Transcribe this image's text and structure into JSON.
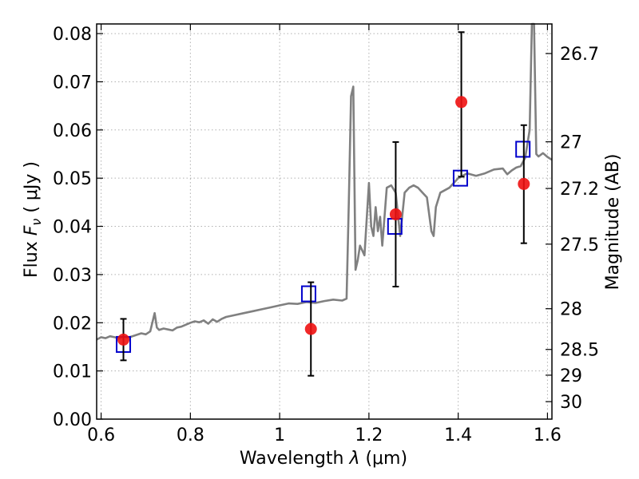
{
  "chart_data": {
    "type": "scatter",
    "xlabel": "Wavelength",
    "xlabel_symbol": "λ",
    "xlabel_unit": "μm",
    "ylabel": "Flux",
    "ylabel_symbol": "F",
    "ylabel_subscript": "ν",
    "ylabel_unit": "μJy",
    "y2label": "Magnitude (AB)",
    "xlim": [
      0.59,
      1.61
    ],
    "ylim": [
      0.0,
      0.082
    ],
    "grid": true,
    "x_ticks": [
      0.6,
      0.8,
      1.0,
      1.2,
      1.4,
      1.6
    ],
    "x_tick_labels": [
      "0.6",
      "0.8",
      "1",
      "1.2",
      "1.4",
      "1.6"
    ],
    "y_ticks": [
      0.0,
      0.01,
      0.02,
      0.03,
      0.04,
      0.05,
      0.06,
      0.07,
      0.08
    ],
    "y_tick_labels": [
      "0.00",
      "0.01",
      "0.02",
      "0.03",
      "0.04",
      "0.05",
      "0.06",
      "0.07",
      "0.08"
    ],
    "y2_tick_labels": [
      "26.7",
      "27",
      "27.2",
      "27.5",
      "28",
      "28.5",
      "29",
      "30"
    ],
    "series": [
      {
        "kind": "line",
        "color": "#808080",
        "x": [
          0.59,
          0.6,
          0.61,
          0.62,
          0.63,
          0.64,
          0.65,
          0.66,
          0.67,
          0.68,
          0.69,
          0.7,
          0.71,
          0.72,
          0.725,
          0.73,
          0.74,
          0.75,
          0.76,
          0.77,
          0.78,
          0.79,
          0.8,
          0.81,
          0.82,
          0.83,
          0.84,
          0.85,
          0.86,
          0.87,
          0.88,
          0.9,
          0.92,
          0.94,
          0.96,
          0.98,
          1.0,
          1.02,
          1.04,
          1.06,
          1.08,
          1.1,
          1.12,
          1.14,
          1.15,
          1.155,
          1.16,
          1.165,
          1.17,
          1.175,
          1.18,
          1.19,
          1.2,
          1.205,
          1.21,
          1.215,
          1.22,
          1.225,
          1.23,
          1.24,
          1.25,
          1.26,
          1.27,
          1.28,
          1.29,
          1.3,
          1.31,
          1.32,
          1.33,
          1.34,
          1.345,
          1.35,
          1.36,
          1.38,
          1.4,
          1.42,
          1.44,
          1.46,
          1.48,
          1.5,
          1.51,
          1.52,
          1.53,
          1.54,
          1.55,
          1.56,
          1.565,
          1.57,
          1.575,
          1.58,
          1.59,
          1.6,
          1.61
        ],
        "y": [
          0.0165,
          0.017,
          0.0168,
          0.0172,
          0.017,
          0.0168,
          0.0171,
          0.0169,
          0.0172,
          0.0175,
          0.0178,
          0.0176,
          0.0182,
          0.022,
          0.019,
          0.0185,
          0.0188,
          0.0186,
          0.0184,
          0.019,
          0.0192,
          0.0196,
          0.02,
          0.0203,
          0.0201,
          0.0205,
          0.0198,
          0.0207,
          0.0202,
          0.0208,
          0.0212,
          0.0216,
          0.022,
          0.0224,
          0.0228,
          0.0232,
          0.0236,
          0.024,
          0.0239,
          0.0243,
          0.0241,
          0.0245,
          0.0248,
          0.0246,
          0.025,
          0.045,
          0.067,
          0.069,
          0.031,
          0.033,
          0.036,
          0.034,
          0.049,
          0.04,
          0.038,
          0.044,
          0.039,
          0.042,
          0.036,
          0.048,
          0.0485,
          0.047,
          0.038,
          0.047,
          0.048,
          0.0485,
          0.048,
          0.047,
          0.046,
          0.039,
          0.038,
          0.044,
          0.047,
          0.048,
          0.05,
          0.051,
          0.0505,
          0.051,
          0.0518,
          0.052,
          0.0508,
          0.0516,
          0.0522,
          0.0525,
          0.0542,
          0.06,
          0.082,
          0.082,
          0.055,
          0.0545,
          0.0552,
          0.0544,
          0.0538
        ]
      },
      {
        "kind": "points",
        "marker": "square",
        "color": "#0000cc",
        "x": [
          0.65,
          1.065,
          1.258,
          1.405,
          1.545
        ],
        "y": [
          0.0155,
          0.026,
          0.04,
          0.05,
          0.056
        ]
      },
      {
        "kind": "points",
        "marker": "circle",
        "color": "#ee1111",
        "x": [
          0.65,
          1.07,
          1.26,
          1.407,
          1.547
        ],
        "y": [
          0.0165,
          0.0187,
          0.0425,
          0.0658,
          0.0488
        ],
        "yerr_low": [
          0.0043,
          0.0097,
          0.015,
          0.0155,
          0.0123
        ],
        "yerr_high": [
          0.0043,
          0.0097,
          0.015,
          0.0145,
          0.0122
        ]
      }
    ]
  }
}
